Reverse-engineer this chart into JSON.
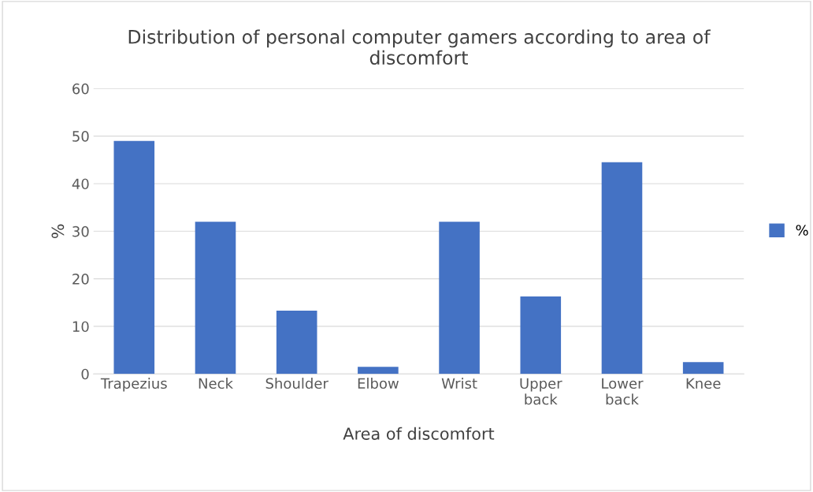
{
  "chart_data": {
    "type": "bar",
    "title": "Distribution of personal computer gamers according to area of\ndiscomfort",
    "xlabel": "Area of discomfort",
    "ylabel": "%",
    "categories": [
      "Trapezius",
      "Neck",
      "Shoulder",
      "Elbow",
      "Wrist",
      "Upper\nback",
      "Lower\nback",
      "Knee"
    ],
    "series": [
      {
        "name": "%",
        "color": "#4472c4",
        "values": [
          49,
          32,
          13.3,
          1.5,
          32,
          16.3,
          44.5,
          2.5
        ]
      }
    ],
    "ylim": [
      0,
      60
    ],
    "yticks": [
      0,
      10,
      20,
      30,
      40,
      50,
      60
    ],
    "grid": "y",
    "legend": "right"
  }
}
